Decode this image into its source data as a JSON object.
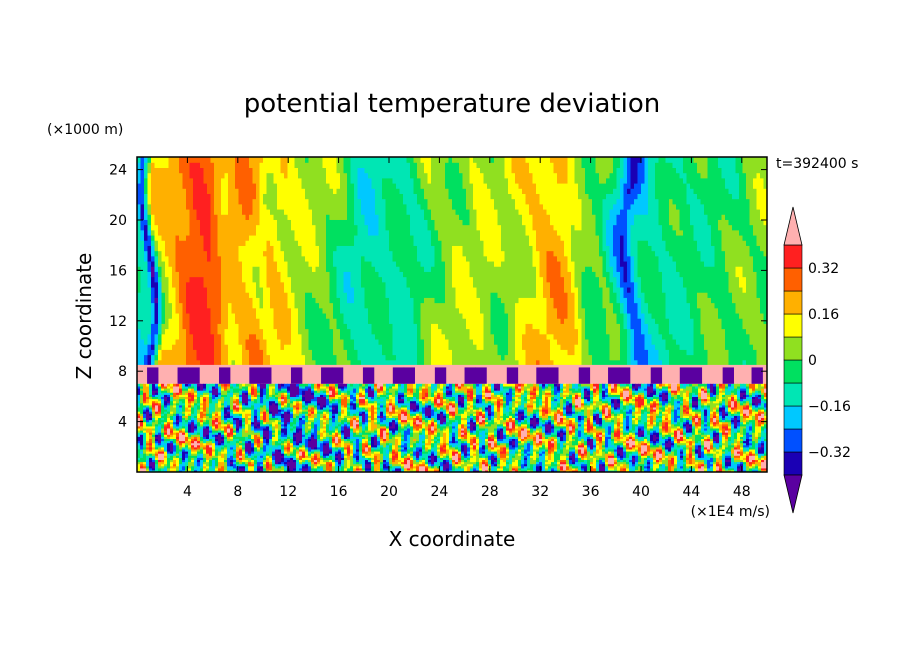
{
  "chart_data": {
    "type": "heatmap",
    "title": "potential temperature deviation",
    "xlabel": "X coordinate",
    "ylabel": "Z coordinate",
    "x_unit": "(×1E4 m/s)",
    "y_unit": "(×1000 m)",
    "time_label": "t=392400 s",
    "xlim": [
      0,
      50
    ],
    "ylim": [
      0,
      25
    ],
    "x_ticks": [
      4,
      8,
      12,
      16,
      20,
      24,
      28,
      32,
      36,
      40,
      44,
      48
    ],
    "y_ticks": [
      4,
      8,
      12,
      16,
      20,
      24
    ],
    "colorbar": {
      "tick_labels": [
        "0.32",
        "0.16",
        "0",
        "−0.16",
        "−0.32"
      ],
      "tick_values": [
        0.32,
        0.16,
        0,
        -0.16,
        -0.32
      ],
      "levels": [
        -0.4,
        -0.32,
        -0.24,
        -0.16,
        -0.08,
        0,
        0.08,
        0.16,
        0.24,
        0.32,
        0.4
      ],
      "colors": [
        "#5a00a0",
        "#1a00b4",
        "#0050ff",
        "#00c8ff",
        "#00e6b4",
        "#00e060",
        "#90e020",
        "#ffff00",
        "#ffb000",
        "#ff6000",
        "#ff2020",
        "#ffb0b0"
      ],
      "extend": "both"
    },
    "upper_layer": {
      "z_range": [
        8.5,
        25
      ],
      "column_profile": [
        {
          "x": 0.3,
          "v": -0.12
        },
        {
          "x": 0.8,
          "v": -0.36
        },
        {
          "x": 1.5,
          "v": 0.1
        },
        {
          "x": 2.5,
          "v": 0.18
        },
        {
          "x": 3.5,
          "v": 0.26
        },
        {
          "x": 5.0,
          "v": 0.34
        },
        {
          "x": 6.0,
          "v": 0.3
        },
        {
          "x": 7.0,
          "v": 0.14
        },
        {
          "x": 8.0,
          "v": 0.2
        },
        {
          "x": 9.0,
          "v": 0.22
        },
        {
          "x": 10.0,
          "v": 0.12
        },
        {
          "x": 11.0,
          "v": 0.16
        },
        {
          "x": 12.0,
          "v": 0.1
        },
        {
          "x": 13.0,
          "v": 0.05
        },
        {
          "x": 14.0,
          "v": 0.03
        },
        {
          "x": 15.0,
          "v": 0.02
        },
        {
          "x": 16.0,
          "v": -0.02
        },
        {
          "x": 17.0,
          "v": -0.1
        },
        {
          "x": 18.0,
          "v": -0.12
        },
        {
          "x": 19.0,
          "v": -0.11
        },
        {
          "x": 20.0,
          "v": -0.09
        },
        {
          "x": 21.0,
          "v": -0.1
        },
        {
          "x": 22.0,
          "v": -0.06
        },
        {
          "x": 23.0,
          "v": 0.01
        },
        {
          "x": 24.0,
          "v": 0.04
        },
        {
          "x": 25.0,
          "v": 0.06
        },
        {
          "x": 26.0,
          "v": 0.04
        },
        {
          "x": 27.0,
          "v": 0.07
        },
        {
          "x": 28.0,
          "v": 0.05
        },
        {
          "x": 29.0,
          "v": 0.03
        },
        {
          "x": 30.0,
          "v": 0.09
        },
        {
          "x": 31.0,
          "v": 0.12
        },
        {
          "x": 32.0,
          "v": 0.18
        },
        {
          "x": 33.0,
          "v": 0.2
        },
        {
          "x": 34.0,
          "v": 0.17
        },
        {
          "x": 35.0,
          "v": 0.04
        },
        {
          "x": 36.0,
          "v": -0.02
        },
        {
          "x": 37.0,
          "v": 0.0
        },
        {
          "x": 38.0,
          "v": -0.12
        },
        {
          "x": 39.0,
          "v": -0.3
        },
        {
          "x": 40.0,
          "v": -0.14
        },
        {
          "x": 41.0,
          "v": -0.1
        },
        {
          "x": 42.0,
          "v": -0.08
        },
        {
          "x": 43.0,
          "v": -0.06
        },
        {
          "x": 44.0,
          "v": -0.04
        },
        {
          "x": 45.0,
          "v": -0.03
        },
        {
          "x": 46.0,
          "v": -0.02
        },
        {
          "x": 47.0,
          "v": -0.03
        },
        {
          "x": 48.0,
          "v": 0.0
        },
        {
          "x": 49.0,
          "v": 0.02
        },
        {
          "x": 50.0,
          "v": 0.02
        }
      ]
    },
    "interface_layer": {
      "z_range": [
        7.0,
        8.5
      ],
      "value": 0.42,
      "min_value": -0.42
    },
    "lower_layer": {
      "z_range": [
        0,
        7.0
      ],
      "description_values": "turbulent mixed layer spanning full colour range"
    }
  }
}
